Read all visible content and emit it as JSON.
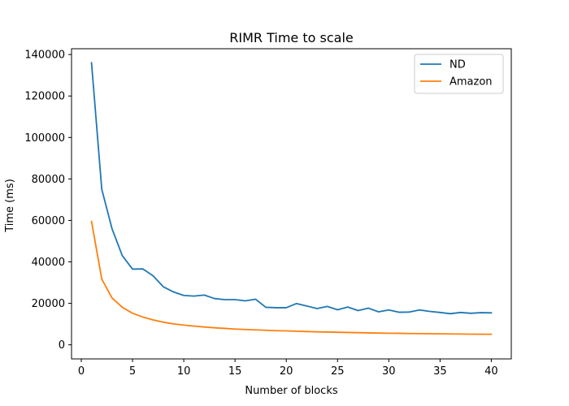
{
  "chart_data": {
    "type": "line",
    "title": "RIMR Time to scale",
    "xlabel": "Number of blocks",
    "ylabel": "Time (ms)",
    "xlim": [
      -0.95,
      41.95
    ],
    "ylim": [
      -6800,
      142800
    ],
    "xticks": [
      0,
      5,
      10,
      15,
      20,
      25,
      30,
      35,
      40
    ],
    "yticks": [
      0,
      20000,
      40000,
      60000,
      80000,
      100000,
      120000,
      140000
    ],
    "grid": false,
    "legend_position": "top-right",
    "series": [
      {
        "name": "ND",
        "color": "#1f77b4",
        "x": [
          1,
          2,
          3,
          4,
          5,
          6,
          7,
          8,
          9,
          10,
          11,
          12,
          13,
          14,
          15,
          16,
          17,
          18,
          19,
          20,
          21,
          22,
          23,
          24,
          25,
          26,
          27,
          28,
          29,
          30,
          31,
          32,
          33,
          34,
          35,
          36,
          37,
          38,
          39,
          40
        ],
        "y": [
          136000,
          75000,
          56000,
          43000,
          36500,
          36600,
          33300,
          28000,
          25500,
          23800,
          23500,
          24000,
          22300,
          21800,
          21800,
          21200,
          22000,
          18100,
          17900,
          17900,
          19900,
          18700,
          17500,
          18500,
          16900,
          18200,
          16500,
          17700,
          15900,
          16800,
          15700,
          15800,
          16800,
          16100,
          15600,
          15000,
          15600,
          15200,
          15500,
          15400
        ]
      },
      {
        "name": "Amazon",
        "color": "#ff7f0e",
        "x": [
          1,
          2,
          3,
          4,
          5,
          6,
          7,
          8,
          9,
          10,
          11,
          12,
          13,
          14,
          15,
          16,
          17,
          18,
          19,
          20,
          21,
          22,
          23,
          24,
          25,
          26,
          27,
          28,
          29,
          30,
          31,
          32,
          33,
          34,
          35,
          36,
          37,
          38,
          39,
          40
        ],
        "y": [
          59500,
          31700,
          22600,
          18100,
          15200,
          13400,
          12000,
          10900,
          10100,
          9500,
          9000,
          8600,
          8200,
          7900,
          7600,
          7400,
          7200,
          7000,
          6800,
          6700,
          6550,
          6400,
          6250,
          6150,
          6050,
          5950,
          5850,
          5750,
          5650,
          5600,
          5550,
          5450,
          5400,
          5350,
          5300,
          5250,
          5200,
          5150,
          5100,
          5100
        ]
      }
    ]
  }
}
